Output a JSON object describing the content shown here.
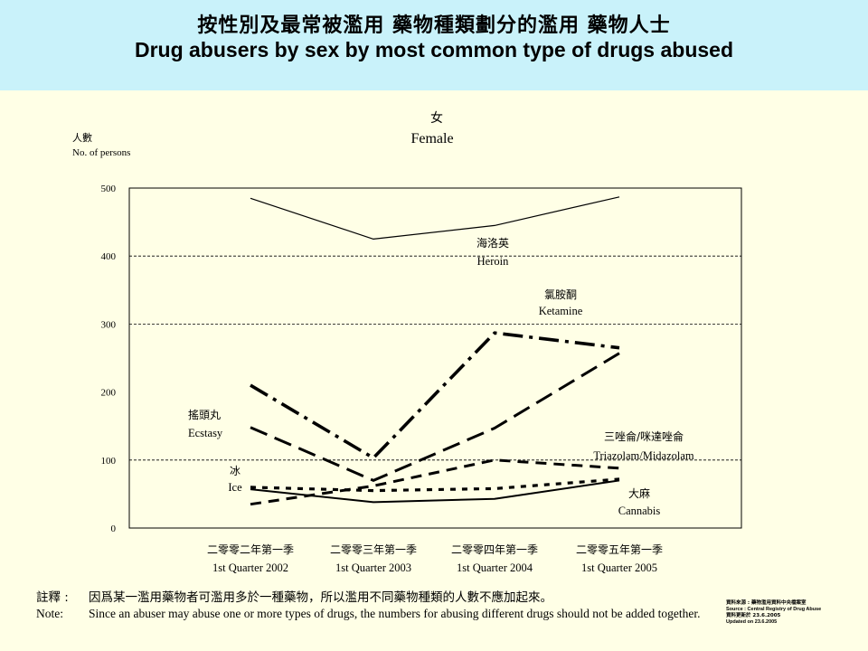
{
  "header": {
    "title_zh": "按性別及最常被濫用 藥物種類劃分的濫用 藥物人士",
    "title_en": "Drug abusers by sex by most common type of drugs abused"
  },
  "chart_data": {
    "type": "line",
    "title_zh": "女",
    "title": "Female",
    "ylabel_zh": "人數",
    "ylabel": "No. of persons",
    "ylim": [
      0,
      500
    ],
    "yticks": [
      "0",
      "100",
      "200",
      "300",
      "400",
      "500"
    ],
    "grid": "dashed horizontal at 100, 300, 400",
    "categories": [
      {
        "zh": "二零零二年第一季",
        "en": "1st Quarter 2002"
      },
      {
        "zh": "二零零三年第一季",
        "en": "1st Quarter 2003"
      },
      {
        "zh": "二零零四年第一季",
        "en": "1st Quarter 2004"
      },
      {
        "zh": "二零零五年第一季",
        "en": "1st Quarter 2005"
      }
    ],
    "series": [
      {
        "name": "Heroin",
        "name_zh": "海洛英",
        "values": [
          485,
          425,
          445,
          487
        ],
        "style": "solid-thin"
      },
      {
        "name": "Ketamine",
        "name_zh": "氯胺酮",
        "values": [
          210,
          103,
          287,
          265
        ],
        "style": "dashdot"
      },
      {
        "name": "Ecstasy",
        "name_zh": "搖頭丸",
        "values": [
          148,
          70,
          147,
          257
        ],
        "style": "longdash"
      },
      {
        "name": "Triazolam/Midazolam",
        "name_zh": "三唑侖/咪達唑侖",
        "values": [
          35,
          62,
          100,
          88
        ],
        "style": "dash"
      },
      {
        "name": "Ice",
        "name_zh": "冰",
        "values": [
          60,
          55,
          58,
          72
        ],
        "style": "shortdash"
      },
      {
        "name": "Cannabis",
        "name_zh": "大麻",
        "values": [
          57,
          38,
          43,
          70
        ],
        "style": "solid-thick"
      }
    ]
  },
  "note": {
    "label_zh": "註釋 :",
    "text_zh": "因爲某一濫用藥物者可濫用多於一種藥物，所以濫用不同藥物種類的人數不應加起來。",
    "label_en": "Note:",
    "text_en": "Since an abuser may abuse one or more types of drugs, the numbers for abusing different drugs should not be added together."
  },
  "source": {
    "line1": "資料來源 : 藥物濫用資料中央檔案室",
    "line2": "Source : Central Registry of Drug Abuse",
    "line3": "資料更新於 23.6.2005",
    "line4": "Updated on 23.6.2005"
  }
}
